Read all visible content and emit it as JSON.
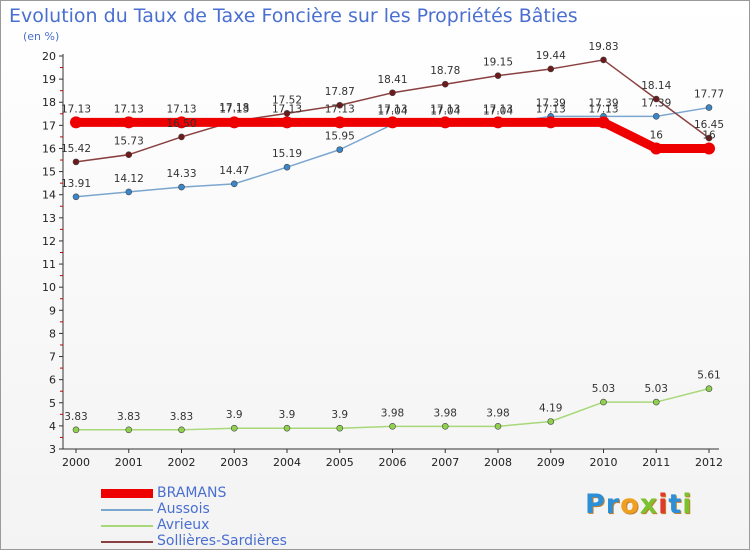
{
  "header": {
    "title": "Evolution du Taux de Taxe Foncière sur les Propriétés Bâties",
    "subtitle": "(en %)"
  },
  "logo": {
    "text": "Proxiti",
    "letters": [
      {
        "ch": "P",
        "color": "#2d8fd8"
      },
      {
        "ch": "r",
        "color": "#2d8fd8"
      },
      {
        "ch": "o",
        "color": "#f0a020"
      },
      {
        "ch": "x",
        "color": "#7cc22e"
      },
      {
        "ch": "i",
        "color": "#e03a2a"
      },
      {
        "ch": "t",
        "color": "#2d8fd8"
      },
      {
        "ch": "i",
        "color": "#7cc22e"
      }
    ]
  },
  "chart_data": {
    "type": "line",
    "title": "Evolution du Taux de Taxe Foncière sur les Propriétés Bâties",
    "ylabel": "(en %)",
    "xlabel": "",
    "categories": [
      "2000",
      "2001",
      "2002",
      "2003",
      "2004",
      "2005",
      "2006",
      "2007",
      "2008",
      "2009",
      "2010",
      "2011",
      "2012"
    ],
    "ylim": [
      3,
      20
    ],
    "yticks": [
      "3",
      "4",
      "5",
      "6",
      "7",
      "8",
      "9",
      "10",
      "11",
      "12",
      "13",
      "14",
      "15",
      "16",
      "17",
      "18",
      "19",
      "20"
    ],
    "grid": false,
    "legend_position": "bottom-left",
    "series": [
      {
        "name": "BRAMANS",
        "color": "#ee0000",
        "marker_color": "#ee0000",
        "width": 9,
        "values": [
          17.13,
          17.13,
          17.13,
          17.13,
          17.13,
          17.13,
          17.13,
          17.13,
          17.13,
          17.13,
          17.13,
          16,
          16
        ],
        "labels": [
          "17.13",
          "17.13",
          "17.13",
          "17.13",
          "17.13",
          "17.13",
          "17.13",
          "17.13",
          "17.13",
          "17.13",
          "17.13",
          "16",
          "16"
        ]
      },
      {
        "name": "Aussois",
        "color": "#7aa6cf",
        "marker_color": "#3a86c8",
        "width": 1.5,
        "values": [
          13.91,
          14.12,
          14.33,
          14.47,
          15.19,
          15.95,
          17.04,
          17.04,
          17.04,
          17.39,
          17.39,
          17.39,
          17.77
        ],
        "labels": [
          "13.91",
          "14.12",
          "14.33",
          "14.47",
          "15.19",
          "15.95",
          "17.04",
          "17.04",
          "17.04",
          "17.39",
          "17.39",
          "17.39",
          "17.77"
        ]
      },
      {
        "name": "Avrieux",
        "color": "#a8d878",
        "marker_color": "#8fd14f",
        "width": 1.5,
        "values": [
          3.83,
          3.83,
          3.83,
          3.9,
          3.9,
          3.9,
          3.98,
          3.98,
          3.98,
          4.19,
          5.03,
          5.03,
          5.61
        ],
        "labels": [
          "3.83",
          "3.83",
          "3.83",
          "3.9",
          "3.9",
          "3.9",
          "3.98",
          "3.98",
          "3.98",
          "4.19",
          "5.03",
          "5.03",
          "5.61"
        ]
      },
      {
        "name": "Sollières-Sardières",
        "color": "#8a4040",
        "marker_color": "#6e1a1a",
        "width": 1.5,
        "values": [
          15.42,
          15.73,
          16.5,
          17.18,
          17.52,
          17.87,
          18.41,
          18.78,
          19.15,
          19.44,
          19.83,
          18.14,
          16.45
        ],
        "labels": [
          "15.42",
          "15.73",
          "16.50",
          "17.18",
          "17.52",
          "17.87",
          "18.41",
          "18.78",
          "19.15",
          "19.44",
          "19.83",
          "18.14",
          "16.45"
        ]
      }
    ]
  }
}
